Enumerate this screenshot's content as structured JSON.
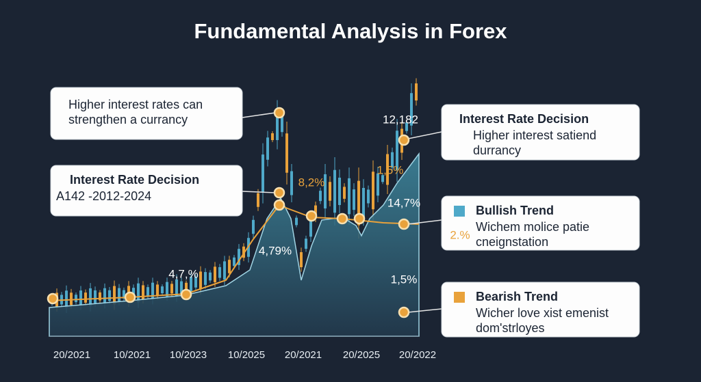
{
  "title": "Fundamental Analysis in Forex",
  "x_axis_labels": [
    "20/2021",
    "10/2021",
    "10/2023",
    "10/2025",
    "20/2021",
    "20/2025",
    "20/2022"
  ],
  "callouts": [
    {
      "lines": [
        "Higher interest rates can",
        "strengthen a currancy"
      ]
    },
    {
      "heading": "Interest Rate Decision",
      "lines": [
        "A142 -2012-2024"
      ]
    },
    {
      "heading": "Interest Rate Decision",
      "lines": [
        "Higher interest satiend",
        "durrancy"
      ]
    },
    {
      "heading": "Bullish Trend",
      "lines": [
        "Wichem molice patie",
        "cneignstation"
      ]
    },
    {
      "heading": "Bearish Trend",
      "lines": [
        "Wicher love xist emenist",
        "dom'strloyes"
      ]
    }
  ],
  "point_labels": [
    "12,182",
    "8,2%",
    "1,5%",
    "14,7%",
    "4,79%",
    "4,7,%",
    "2.%",
    "1,5%"
  ]
}
